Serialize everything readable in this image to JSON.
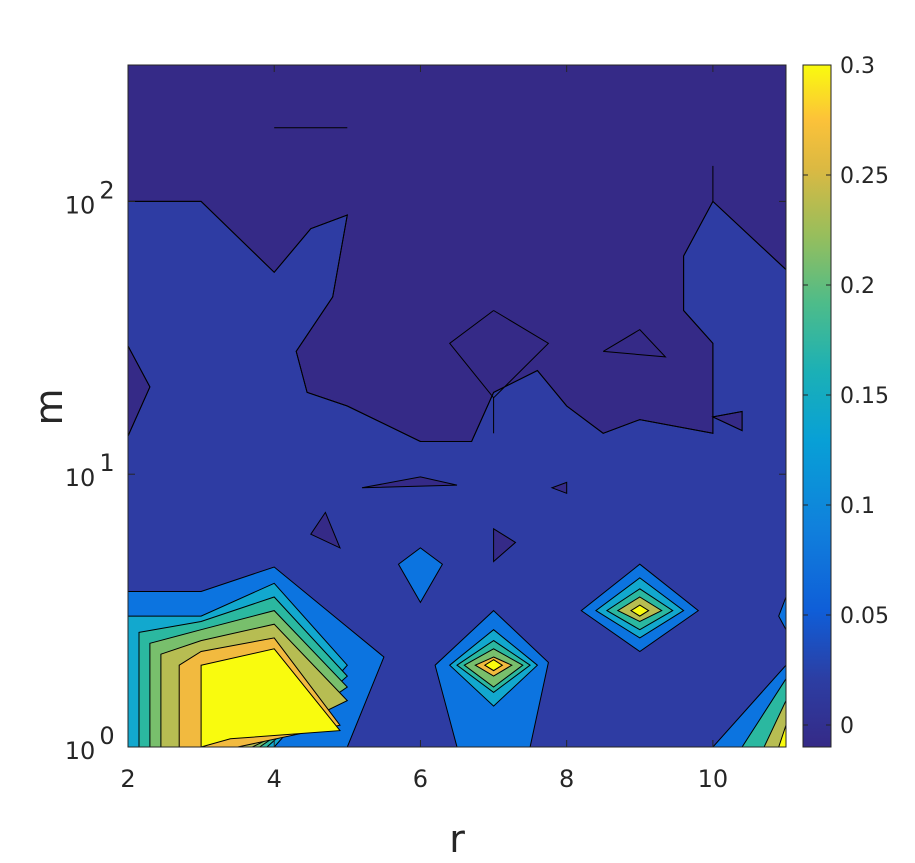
{
  "chart_data": {
    "type": "contour",
    "title": "",
    "xlabel": "r",
    "ylabel": "m",
    "xlim": [
      2,
      11
    ],
    "ylim_log10": [
      0,
      2.5
    ],
    "y_scale": "log",
    "x_ticks": [
      {
        "value": 2,
        "label": "2"
      },
      {
        "value": 4,
        "label": "4"
      },
      {
        "value": 6,
        "label": "6"
      },
      {
        "value": 8,
        "label": "8"
      },
      {
        "value": 10,
        "label": "10"
      }
    ],
    "y_ticks": [
      {
        "value": 1,
        "base": "10",
        "exp": "0"
      },
      {
        "value": 10,
        "base": "10",
        "exp": "1"
      },
      {
        "value": 100,
        "base": "10",
        "exp": "2"
      }
    ],
    "colorbar": {
      "range": [
        -0.01,
        0.3
      ],
      "ticks": [
        {
          "value": 0,
          "label": "0"
        },
        {
          "value": 0.05,
          "label": "0.05"
        },
        {
          "value": 0.1,
          "label": "0.1"
        },
        {
          "value": 0.15,
          "label": "0.15"
        },
        {
          "value": 0.2,
          "label": "0.2"
        },
        {
          "value": 0.25,
          "label": "0.25"
        },
        {
          "value": 0.3,
          "label": "0.3"
        }
      ]
    },
    "levels": [
      {
        "value": -0.01,
        "color": "#352a87"
      },
      {
        "value": 0.0,
        "color": "#2e3ca3"
      },
      {
        "value": 0.03,
        "color": "#0c74e0"
      },
      {
        "value": 0.08,
        "color": "#12a8ce"
      },
      {
        "value": 0.12,
        "color": "#2bb8a0"
      },
      {
        "value": 0.16,
        "color": "#78bf6c"
      },
      {
        "value": 0.2,
        "color": "#b7bd52"
      },
      {
        "value": 0.24,
        "color": "#f2ba3f"
      },
      {
        "value": 0.28,
        "color": "#f9fb0e"
      }
    ],
    "regions": [
      {
        "level": 1,
        "points": [
          [
            2,
            2
          ],
          [
            3,
            2
          ],
          [
            4,
            1.74
          ],
          [
            4.5,
            1.9
          ],
          [
            5,
            1.95
          ],
          [
            4.8,
            1.65
          ],
          [
            4.3,
            1.45
          ],
          [
            4.45,
            1.3
          ],
          [
            5,
            1.25
          ],
          [
            6,
            1.12
          ],
          [
            6.7,
            1.12
          ],
          [
            7,
            1.3
          ],
          [
            7.6,
            1.38
          ],
          [
            8,
            1.25
          ],
          [
            8.5,
            1.15
          ],
          [
            9,
            1.2
          ],
          [
            10,
            1.15
          ],
          [
            10,
            1.48
          ],
          [
            9.6,
            1.6
          ],
          [
            9.6,
            1.8
          ],
          [
            10,
            2
          ],
          [
            11,
            1.75
          ],
          [
            11,
            0
          ],
          [
            2,
            0
          ],
          [
            2,
            1.14
          ],
          [
            2.3,
            1.32
          ],
          [
            2,
            1.47
          ]
        ]
      },
      {
        "level": 0,
        "points": [
          [
            10,
            1.21
          ],
          [
            10.4,
            1.23
          ],
          [
            10.4,
            1.16
          ]
        ]
      },
      {
        "level": 0,
        "points": [
          [
            8,
            0.93
          ],
          [
            8,
            0.97
          ],
          [
            7.8,
            0.95
          ]
        ]
      },
      {
        "level": 0,
        "points": [
          [
            5.2,
            0.95
          ],
          [
            6,
            0.99
          ],
          [
            6.5,
            0.96
          ]
        ]
      },
      {
        "level": 0,
        "points": [
          [
            4.5,
            0.78
          ],
          [
            4.7,
            0.86
          ],
          [
            4.9,
            0.73
          ]
        ]
      },
      {
        "level": 0,
        "points": [
          [
            7,
            0.68
          ],
          [
            7,
            0.8
          ],
          [
            7.3,
            0.75
          ]
        ]
      },
      {
        "level": 2,
        "points": [
          [
            6,
            0.73
          ],
          [
            6.3,
            0.67
          ],
          [
            6,
            0.53
          ],
          [
            5.7,
            0.67
          ]
        ]
      },
      {
        "level": 2,
        "points": [
          [
            2,
            0.57
          ],
          [
            3,
            0.57
          ],
          [
            4,
            0.66
          ],
          [
            5,
            0.44
          ],
          [
            5.5,
            0.33
          ],
          [
            5,
            0
          ],
          [
            4,
            0
          ],
          [
            3,
            0
          ],
          [
            2,
            0
          ]
        ]
      },
      {
        "level": 3,
        "points": [
          [
            2,
            0.48
          ],
          [
            3,
            0.48
          ],
          [
            4,
            0.6
          ],
          [
            5,
            0.3
          ],
          [
            4,
            0
          ],
          [
            2,
            0
          ]
        ]
      },
      {
        "level": 4,
        "points": [
          [
            2.15,
            0.42
          ],
          [
            3,
            0.46
          ],
          [
            4,
            0.55
          ],
          [
            5,
            0.26
          ],
          [
            3.9,
            0
          ],
          [
            2.15,
            0
          ]
        ]
      },
      {
        "level": 5,
        "points": [
          [
            2.3,
            0.38
          ],
          [
            3,
            0.43
          ],
          [
            4,
            0.5
          ],
          [
            5,
            0.22
          ],
          [
            3.8,
            0
          ],
          [
            2.3,
            0
          ]
        ]
      },
      {
        "level": 6,
        "points": [
          [
            2.45,
            0.34
          ],
          [
            3,
            0.39
          ],
          [
            4,
            0.45
          ],
          [
            5,
            0.17
          ],
          [
            3.7,
            0
          ],
          [
            2.45,
            0
          ]
        ]
      },
      {
        "level": 7,
        "points": [
          [
            2.7,
            0.3
          ],
          [
            3,
            0.35
          ],
          [
            4,
            0.4
          ],
          [
            4.9,
            0.08
          ],
          [
            3.5,
            0
          ],
          [
            2.7,
            0
          ]
        ]
      },
      {
        "level": 8,
        "points": [
          [
            3,
            0.3
          ],
          [
            4,
            0.36
          ],
          [
            4.9,
            0.06
          ],
          [
            3.4,
            0.03
          ],
          [
            3,
            0
          ]
        ]
      },
      {
        "level": 2,
        "points": [
          [
            7,
            0.5
          ],
          [
            7.75,
            0.31
          ],
          [
            7.5,
            0
          ],
          [
            6.5,
            0
          ],
          [
            6.2,
            0.3
          ]
        ]
      },
      {
        "level": 3,
        "points": [
          [
            7,
            0.43
          ],
          [
            7.6,
            0.3
          ],
          [
            7,
            0.15
          ],
          [
            6.4,
            0.3
          ]
        ]
      },
      {
        "level": 4,
        "points": [
          [
            7,
            0.39
          ],
          [
            7.5,
            0.3
          ],
          [
            7,
            0.2
          ],
          [
            6.5,
            0.3
          ]
        ]
      },
      {
        "level": 5,
        "points": [
          [
            7,
            0.36
          ],
          [
            7.4,
            0.3
          ],
          [
            7,
            0.22
          ],
          [
            6.6,
            0.3
          ]
        ]
      },
      {
        "level": 7,
        "points": [
          [
            7,
            0.33
          ],
          [
            7.25,
            0.3
          ],
          [
            7,
            0.26
          ],
          [
            6.75,
            0.3
          ]
        ]
      },
      {
        "level": 8,
        "points": [
          [
            7,
            0.32
          ],
          [
            7.12,
            0.3
          ],
          [
            7,
            0.28
          ],
          [
            6.88,
            0.3
          ]
        ]
      },
      {
        "level": 2,
        "points": [
          [
            9,
            0.67
          ],
          [
            9.8,
            0.5
          ],
          [
            9,
            0.35
          ],
          [
            8.2,
            0.5
          ]
        ]
      },
      {
        "level": 3,
        "points": [
          [
            9,
            0.62
          ],
          [
            9.6,
            0.5
          ],
          [
            9,
            0.4
          ],
          [
            8.4,
            0.5
          ]
        ]
      },
      {
        "level": 4,
        "points": [
          [
            9,
            0.58
          ],
          [
            9.45,
            0.5
          ],
          [
            9,
            0.43
          ],
          [
            8.55,
            0.5
          ]
        ]
      },
      {
        "level": 6,
        "points": [
          [
            9,
            0.55
          ],
          [
            9.3,
            0.5
          ],
          [
            9,
            0.46
          ],
          [
            8.7,
            0.5
          ]
        ]
      },
      {
        "level": 8,
        "points": [
          [
            9,
            0.52
          ],
          [
            9.12,
            0.5
          ],
          [
            9,
            0.48
          ],
          [
            8.88,
            0.5
          ]
        ]
      },
      {
        "level": 2,
        "points": [
          [
            11,
            0.55
          ],
          [
            10.9,
            0.48
          ],
          [
            11,
            0.43
          ]
        ]
      },
      {
        "level": 2,
        "points": [
          [
            11,
            0.3
          ],
          [
            10,
            0
          ],
          [
            11,
            0
          ]
        ]
      },
      {
        "level": 4,
        "points": [
          [
            11,
            0.25
          ],
          [
            10.4,
            0
          ],
          [
            11,
            0
          ]
        ]
      },
      {
        "level": 6,
        "points": [
          [
            11,
            0.17
          ],
          [
            10.7,
            0
          ],
          [
            11,
            0
          ]
        ]
      },
      {
        "level": 8,
        "points": [
          [
            11,
            0.08
          ],
          [
            10.9,
            0
          ],
          [
            11,
            0
          ]
        ]
      }
    ],
    "isolines": [
      [
        [
          2,
          2
        ],
        [
          3,
          2
        ],
        [
          4,
          1.74
        ],
        [
          4.5,
          1.9
        ],
        [
          5,
          1.95
        ],
        [
          4.8,
          1.65
        ],
        [
          4.3,
          1.45
        ],
        [
          4.45,
          1.3
        ],
        [
          5,
          1.25
        ],
        [
          6,
          1.12
        ],
        [
          6.7,
          1.12
        ],
        [
          7,
          1.3
        ],
        [
          7.6,
          1.38
        ],
        [
          8,
          1.25
        ],
        [
          8.5,
          1.15
        ],
        [
          9,
          1.2
        ],
        [
          10,
          1.15
        ],
        [
          10,
          1.48
        ],
        [
          9.6,
          1.6
        ],
        [
          9.6,
          1.8
        ],
        [
          10,
          2
        ],
        [
          11,
          1.75
        ]
      ],
      [
        [
          2,
          1.47
        ],
        [
          2.3,
          1.32
        ],
        [
          2,
          1.14
        ]
      ],
      [
        [
          4,
          2.27
        ],
        [
          5,
          2.27
        ]
      ],
      [
        [
          10,
          2.13
        ],
        [
          10,
          2
        ]
      ],
      [
        [
          7,
          1.6
        ],
        [
          7.75,
          1.48
        ],
        [
          7,
          1.28
        ],
        [
          6.4,
          1.48
        ],
        [
          7,
          1.6
        ]
      ],
      [
        [
          7,
          1.28
        ],
        [
          7,
          1.15
        ]
      ],
      [
        [
          8.5,
          1.45
        ],
        [
          9,
          1.53
        ],
        [
          9.35,
          1.43
        ],
        [
          8.5,
          1.45
        ]
      ],
      [
        [
          10,
          1.21
        ],
        [
          10.4,
          1.23
        ],
        [
          10.4,
          1.16
        ],
        [
          10,
          1.21
        ]
      ]
    ]
  }
}
